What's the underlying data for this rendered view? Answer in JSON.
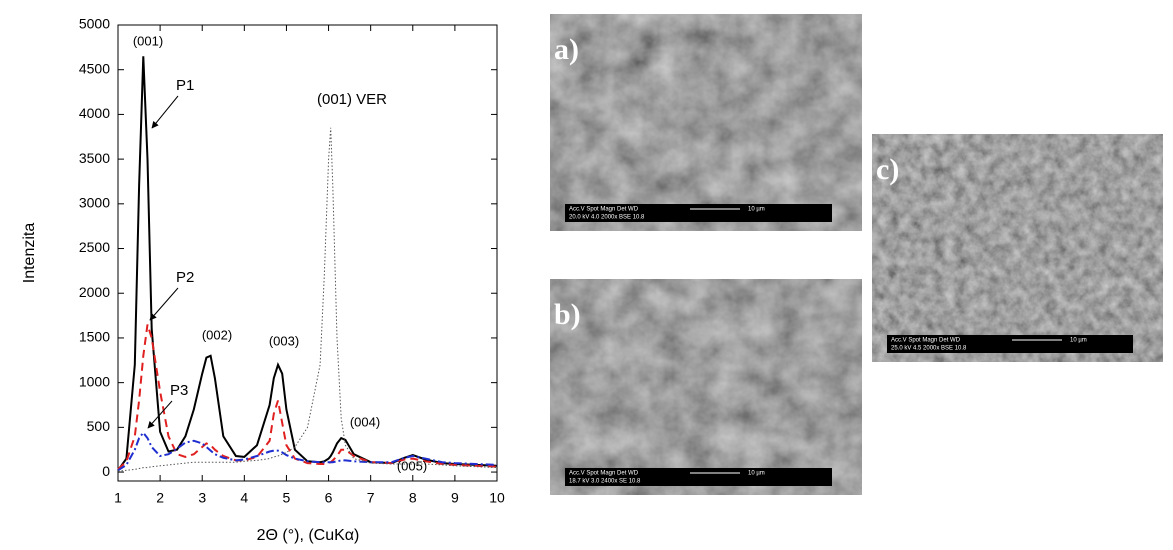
{
  "chart_data": {
    "type": "line",
    "ylabel": "Intenzita",
    "xlabel": "2Θ (°), (CuKα)",
    "x": [
      1,
      1.2,
      1.4,
      1.5,
      1.6,
      1.7,
      1.8,
      2.0,
      2.2,
      2.4,
      2.6,
      2.8,
      3.0,
      3.1,
      3.2,
      3.3,
      3.5,
      3.8,
      4.0,
      4.3,
      4.6,
      4.7,
      4.8,
      4.9,
      5.0,
      5.2,
      5.5,
      5.8,
      5.9,
      6.0,
      6.05,
      6.1,
      6.2,
      6.3,
      6.4,
      6.6,
      7.0,
      7.5,
      7.8,
      8.0,
      8.3,
      8.7,
      9.0,
      9.5,
      10
    ],
    "series": [
      {
        "name": "P1",
        "color": "#000000",
        "dash": "solid",
        "values": [
          20,
          150,
          1200,
          3200,
          4650,
          3500,
          1600,
          450,
          230,
          250,
          400,
          700,
          1100,
          1280,
          1300,
          1050,
          400,
          180,
          170,
          300,
          750,
          1050,
          1200,
          1100,
          700,
          250,
          120,
          110,
          120,
          150,
          180,
          220,
          320,
          380,
          360,
          200,
          110,
          100,
          160,
          190,
          140,
          100,
          90,
          80,
          70
        ]
      },
      {
        "name": "P2",
        "color": "#e02020",
        "dash": "dashed",
        "values": [
          30,
          120,
          400,
          800,
          1300,
          1650,
          1500,
          900,
          400,
          200,
          170,
          200,
          280,
          320,
          300,
          250,
          180,
          130,
          130,
          170,
          350,
          650,
          800,
          550,
          300,
          150,
          100,
          90,
          90,
          100,
          110,
          130,
          180,
          250,
          250,
          180,
          110,
          100,
          140,
          150,
          120,
          90,
          80,
          70,
          60
        ]
      },
      {
        "name": "P3",
        "color": "#1f2fd0",
        "dash": "dashdot",
        "values": [
          20,
          80,
          250,
          380,
          440,
          380,
          280,
          180,
          200,
          260,
          330,
          350,
          320,
          280,
          240,
          200,
          160,
          130,
          140,
          180,
          230,
          240,
          240,
          220,
          190,
          150,
          120,
          110,
          110,
          110,
          110,
          110,
          120,
          130,
          130,
          120,
          110,
          110,
          160,
          180,
          150,
          110,
          100,
          90,
          80
        ]
      },
      {
        "name": "(001) VER",
        "color": "#555555",
        "dash": "dotted",
        "values": [
          10,
          20,
          30,
          40,
          50,
          50,
          60,
          70,
          80,
          90,
          100,
          110,
          110,
          110,
          110,
          110,
          110,
          110,
          120,
          130,
          150,
          170,
          180,
          200,
          220,
          280,
          500,
          1200,
          2200,
          3500,
          3850,
          3200,
          1500,
          600,
          300,
          150,
          100,
          90,
          90,
          90,
          90,
          80,
          70,
          60,
          50
        ]
      }
    ],
    "annotations": [
      "(001)",
      "(002)",
      "(003)",
      "(004)",
      "(005)"
    ],
    "xlim": [
      1,
      10
    ],
    "xticks": [
      1,
      2,
      3,
      4,
      5,
      6,
      7,
      8,
      9,
      10
    ],
    "ylim": [
      -100,
      5000
    ],
    "yticks": [
      0,
      500,
      1000,
      1500,
      2000,
      2500,
      3000,
      3500,
      4000,
      4500,
      5000
    ],
    "grid": false
  },
  "images": [
    {
      "label": "a)",
      "info": [
        "Acc.V  Spot Magn    Det  WD",
        "20.0 kV 4.0  2000x   BSE  10.8",
        "10 µm"
      ]
    },
    {
      "label": "b)",
      "info": [
        "Acc.V  Spot Magn    Det  WD",
        "18.7 kV 3.0  2400x   SE   10.8",
        "10 µm"
      ]
    },
    {
      "label": "c)",
      "info": [
        "Acc.V  Spot Magn    Det  WD",
        "25.0 kV 4.5  2000x   BSE  10.8",
        "10 µm"
      ]
    }
  ]
}
